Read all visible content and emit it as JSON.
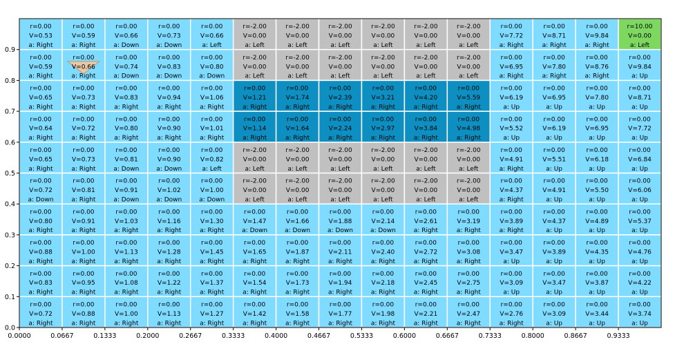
{
  "chart_data": {
    "type": "heatmap",
    "title": "",
    "xlabel": "",
    "ylabel": "",
    "xlim": [
      0,
      1
    ],
    "ylim": [
      0,
      1
    ],
    "grid": true,
    "cols": 15,
    "rows": 10,
    "x_ticks": [
      "0.0000",
      "0.0667",
      "0.1333",
      "0.2000",
      "0.2667",
      "0.3333",
      "0.4000",
      "0.4667",
      "0.5333",
      "0.6000",
      "0.6667",
      "0.7333",
      "0.8000",
      "0.8667",
      "0.9333"
    ],
    "y_ticks": [
      "0.0",
      "0.1",
      "0.2",
      "0.3",
      "0.4",
      "0.5",
      "0.6",
      "0.7",
      "0.8",
      "0.9"
    ],
    "colors": {
      "normal": "#7fdbff",
      "penalty": "#c0c0c0",
      "path": "#0e8fc2",
      "goal": "#7ed860",
      "agent": "#f0c8a0",
      "grid_line": "#ffffff"
    },
    "agent": {
      "row": 1,
      "col": 1,
      "shape": "triangle-down"
    },
    "cells": [
      [
        {
          "r": "0.00",
          "v": "0.53",
          "a": "Right",
          "kind": "normal"
        },
        {
          "r": "0.00",
          "v": "0.59",
          "a": "Right",
          "kind": "normal"
        },
        {
          "r": "0.00",
          "v": "0.66",
          "a": "Down",
          "kind": "normal"
        },
        {
          "r": "0.00",
          "v": "0.73",
          "a": "Down",
          "kind": "normal"
        },
        {
          "r": "0.00",
          "v": "0.66",
          "a": "Left",
          "kind": "normal"
        },
        {
          "r": "-2.00",
          "v": "0.00",
          "a": "Left",
          "kind": "penalty"
        },
        {
          "r": "-2.00",
          "v": "0.00",
          "a": "Left",
          "kind": "penalty"
        },
        {
          "r": "-2.00",
          "v": "0.00",
          "a": "Left",
          "kind": "penalty"
        },
        {
          "r": "-2.00",
          "v": "0.00",
          "a": "Left",
          "kind": "penalty"
        },
        {
          "r": "-2.00",
          "v": "0.00",
          "a": "Left",
          "kind": "penalty"
        },
        {
          "r": "-2.00",
          "v": "0.00",
          "a": "Left",
          "kind": "penalty"
        },
        {
          "r": "0.00",
          "v": "7.72",
          "a": "Right",
          "kind": "normal"
        },
        {
          "r": "0.00",
          "v": "8.71",
          "a": "Right",
          "kind": "normal"
        },
        {
          "r": "0.00",
          "v": "9.84",
          "a": "Right",
          "kind": "normal"
        },
        {
          "r": "10.00",
          "v": "0.00",
          "a": "Left",
          "kind": "goal"
        }
      ],
      [
        {
          "r": "0.00",
          "v": "0.59",
          "a": "Right",
          "kind": "normal"
        },
        {
          "r": "0.00",
          "v": "0.66",
          "a": "Right",
          "kind": "normal"
        },
        {
          "r": "0.00",
          "v": "0.74",
          "a": "Down",
          "kind": "normal"
        },
        {
          "r": "0.00",
          "v": "0.83",
          "a": "Down",
          "kind": "normal"
        },
        {
          "r": "0.00",
          "v": "0.80",
          "a": "Down",
          "kind": "normal"
        },
        {
          "r": "-2.00",
          "v": "0.00",
          "a": "Left",
          "kind": "penalty"
        },
        {
          "r": "-2.00",
          "v": "0.00",
          "a": "Left",
          "kind": "penalty"
        },
        {
          "r": "-2.00",
          "v": "0.00",
          "a": "Left",
          "kind": "penalty"
        },
        {
          "r": "-2.00",
          "v": "0.00",
          "a": "Left",
          "kind": "penalty"
        },
        {
          "r": "-2.00",
          "v": "0.00",
          "a": "Left",
          "kind": "penalty"
        },
        {
          "r": "-2.00",
          "v": "0.00",
          "a": "Left",
          "kind": "penalty"
        },
        {
          "r": "0.00",
          "v": "6.95",
          "a": "Right",
          "kind": "normal"
        },
        {
          "r": "0.00",
          "v": "7.80",
          "a": "Right",
          "kind": "normal"
        },
        {
          "r": "0.00",
          "v": "8.76",
          "a": "Right",
          "kind": "normal"
        },
        {
          "r": "0.00",
          "v": "9.84",
          "a": "Up",
          "kind": "normal"
        }
      ],
      [
        {
          "r": "0.00",
          "v": "0.65",
          "a": "Right",
          "kind": "normal"
        },
        {
          "r": "0.00",
          "v": "0.73",
          "a": "Right",
          "kind": "normal"
        },
        {
          "r": "0.00",
          "v": "0.83",
          "a": "Right",
          "kind": "normal"
        },
        {
          "r": "0.00",
          "v": "0.94",
          "a": "Right",
          "kind": "normal"
        },
        {
          "r": "0.00",
          "v": "1.06",
          "a": "Right",
          "kind": "normal"
        },
        {
          "r": "0.00",
          "v": "1.21",
          "a": "Right",
          "kind": "path"
        },
        {
          "r": "0.00",
          "v": "1.74",
          "a": "Right",
          "kind": "path"
        },
        {
          "r": "0.00",
          "v": "2.39",
          "a": "Right",
          "kind": "path"
        },
        {
          "r": "0.00",
          "v": "3.21",
          "a": "Right",
          "kind": "path"
        },
        {
          "r": "0.00",
          "v": "4.20",
          "a": "Right",
          "kind": "path"
        },
        {
          "r": "0.00",
          "v": "5.59",
          "a": "Right",
          "kind": "path"
        },
        {
          "r": "0.00",
          "v": "6.19",
          "a": "Up",
          "kind": "normal"
        },
        {
          "r": "0.00",
          "v": "6.95",
          "a": "Up",
          "kind": "normal"
        },
        {
          "r": "0.00",
          "v": "7.80",
          "a": "Up",
          "kind": "normal"
        },
        {
          "r": "0.00",
          "v": "8.71",
          "a": "Up",
          "kind": "normal"
        }
      ],
      [
        {
          "r": "0.00",
          "v": "0.64",
          "a": "Right",
          "kind": "normal"
        },
        {
          "r": "0.00",
          "v": "0.72",
          "a": "Right",
          "kind": "normal"
        },
        {
          "r": "0.00",
          "v": "0.80",
          "a": "Right",
          "kind": "normal"
        },
        {
          "r": "0.00",
          "v": "0.90",
          "a": "Right",
          "kind": "normal"
        },
        {
          "r": "0.00",
          "v": "1.01",
          "a": "Right",
          "kind": "normal"
        },
        {
          "r": "0.00",
          "v": "1.14",
          "a": "Right",
          "kind": "path"
        },
        {
          "r": "0.00",
          "v": "1.64",
          "a": "Right",
          "kind": "path"
        },
        {
          "r": "0.00",
          "v": "2.24",
          "a": "Right",
          "kind": "path"
        },
        {
          "r": "0.00",
          "v": "2.97",
          "a": "Right",
          "kind": "path"
        },
        {
          "r": "0.00",
          "v": "3.84",
          "a": "Right",
          "kind": "path"
        },
        {
          "r": "0.00",
          "v": "4.98",
          "a": "Right",
          "kind": "path"
        },
        {
          "r": "0.00",
          "v": "5.52",
          "a": "Up",
          "kind": "normal"
        },
        {
          "r": "0.00",
          "v": "6.19",
          "a": "Up",
          "kind": "normal"
        },
        {
          "r": "0.00",
          "v": "6.95",
          "a": "Up",
          "kind": "normal"
        },
        {
          "r": "0.00",
          "v": "7.72",
          "a": "Up",
          "kind": "normal"
        }
      ],
      [
        {
          "r": "0.00",
          "v": "0.65",
          "a": "Right",
          "kind": "normal"
        },
        {
          "r": "0.00",
          "v": "0.73",
          "a": "Right",
          "kind": "normal"
        },
        {
          "r": "0.00",
          "v": "0.81",
          "a": "Down",
          "kind": "normal"
        },
        {
          "r": "0.00",
          "v": "0.90",
          "a": "Down",
          "kind": "normal"
        },
        {
          "r": "0.00",
          "v": "0.82",
          "a": "Left",
          "kind": "normal"
        },
        {
          "r": "-2.00",
          "v": "0.00",
          "a": "Left",
          "kind": "penalty"
        },
        {
          "r": "-2.00",
          "v": "0.00",
          "a": "Left",
          "kind": "penalty"
        },
        {
          "r": "-2.00",
          "v": "0.00",
          "a": "Left",
          "kind": "penalty"
        },
        {
          "r": "-2.00",
          "v": "0.00",
          "a": "Left",
          "kind": "penalty"
        },
        {
          "r": "-2.00",
          "v": "0.00",
          "a": "Left",
          "kind": "penalty"
        },
        {
          "r": "-2.00",
          "v": "0.00",
          "a": "Left",
          "kind": "penalty"
        },
        {
          "r": "0.00",
          "v": "4.91",
          "a": "Right",
          "kind": "normal"
        },
        {
          "r": "0.00",
          "v": "5.51",
          "a": "Up",
          "kind": "normal"
        },
        {
          "r": "0.00",
          "v": "6.18",
          "a": "Up",
          "kind": "normal"
        },
        {
          "r": "0.00",
          "v": "6.84",
          "a": "Up",
          "kind": "normal"
        }
      ],
      [
        {
          "r": "0.00",
          "v": "0.72",
          "a": "Down",
          "kind": "normal"
        },
        {
          "r": "0.00",
          "v": "0.81",
          "a": "Right",
          "kind": "normal"
        },
        {
          "r": "0.00",
          "v": "0.91",
          "a": "Down",
          "kind": "normal"
        },
        {
          "r": "0.00",
          "v": "1.02",
          "a": "Down",
          "kind": "normal"
        },
        {
          "r": "0.00",
          "v": "1.00",
          "a": "Down",
          "kind": "normal"
        },
        {
          "r": "-2.00",
          "v": "0.00",
          "a": "Left",
          "kind": "penalty"
        },
        {
          "r": "-2.00",
          "v": "0.00",
          "a": "Left",
          "kind": "penalty"
        },
        {
          "r": "-2.00",
          "v": "0.00",
          "a": "Left",
          "kind": "penalty"
        },
        {
          "r": "-2.00",
          "v": "0.00",
          "a": "Left",
          "kind": "penalty"
        },
        {
          "r": "-2.00",
          "v": "0.00",
          "a": "Left",
          "kind": "penalty"
        },
        {
          "r": "-2.00",
          "v": "0.00",
          "a": "Left",
          "kind": "penalty"
        },
        {
          "r": "0.00",
          "v": "4.37",
          "a": "Right",
          "kind": "normal"
        },
        {
          "r": "0.00",
          "v": "4.91",
          "a": "Up",
          "kind": "normal"
        },
        {
          "r": "0.00",
          "v": "5.50",
          "a": "Up",
          "kind": "normal"
        },
        {
          "r": "0.00",
          "v": "6.06",
          "a": "Up",
          "kind": "normal"
        }
      ],
      [
        {
          "r": "0.00",
          "v": "0.80",
          "a": "Right",
          "kind": "normal"
        },
        {
          "r": "0.00",
          "v": "0.91",
          "a": "Right",
          "kind": "normal"
        },
        {
          "r": "0.00",
          "v": "1.03",
          "a": "Right",
          "kind": "normal"
        },
        {
          "r": "0.00",
          "v": "1.16",
          "a": "Right",
          "kind": "normal"
        },
        {
          "r": "0.00",
          "v": "1.30",
          "a": "Right",
          "kind": "normal"
        },
        {
          "r": "0.00",
          "v": "1.47",
          "a": "Down",
          "kind": "normal"
        },
        {
          "r": "0.00",
          "v": "1.66",
          "a": "Down",
          "kind": "normal"
        },
        {
          "r": "0.00",
          "v": "1.88",
          "a": "Down",
          "kind": "normal"
        },
        {
          "r": "0.00",
          "v": "2.14",
          "a": "Down",
          "kind": "normal"
        },
        {
          "r": "0.00",
          "v": "2.61",
          "a": "Right",
          "kind": "normal"
        },
        {
          "r": "0.00",
          "v": "3.19",
          "a": "Right",
          "kind": "normal"
        },
        {
          "r": "0.00",
          "v": "3.89",
          "a": "Right",
          "kind": "normal"
        },
        {
          "r": "0.00",
          "v": "4.37",
          "a": "Up",
          "kind": "normal"
        },
        {
          "r": "0.00",
          "v": "4.89",
          "a": "Up",
          "kind": "normal"
        },
        {
          "r": "0.00",
          "v": "5.37",
          "a": "Up",
          "kind": "normal"
        }
      ],
      [
        {
          "r": "0.00",
          "v": "0.88",
          "a": "Right",
          "kind": "normal"
        },
        {
          "r": "0.00",
          "v": "1.00",
          "a": "Right",
          "kind": "normal"
        },
        {
          "r": "0.00",
          "v": "1.13",
          "a": "Right",
          "kind": "normal"
        },
        {
          "r": "0.00",
          "v": "1.28",
          "a": "Right",
          "kind": "normal"
        },
        {
          "r": "0.00",
          "v": "1.45",
          "a": "Right",
          "kind": "normal"
        },
        {
          "r": "0.00",
          "v": "1.65",
          "a": "Right",
          "kind": "normal"
        },
        {
          "r": "0.00",
          "v": "1.87",
          "a": "Right",
          "kind": "normal"
        },
        {
          "r": "0.00",
          "v": "2.11",
          "a": "Right",
          "kind": "normal"
        },
        {
          "r": "0.00",
          "v": "2.40",
          "a": "Right",
          "kind": "normal"
        },
        {
          "r": "0.00",
          "v": "2.72",
          "a": "Right",
          "kind": "normal"
        },
        {
          "r": "0.00",
          "v": "3.08",
          "a": "Right",
          "kind": "normal"
        },
        {
          "r": "0.00",
          "v": "3.47",
          "a": "Up",
          "kind": "normal"
        },
        {
          "r": "0.00",
          "v": "3.89",
          "a": "Up",
          "kind": "normal"
        },
        {
          "r": "0.00",
          "v": "4.35",
          "a": "Up",
          "kind": "normal"
        },
        {
          "r": "0.00",
          "v": "4.76",
          "a": "Up",
          "kind": "normal"
        }
      ],
      [
        {
          "r": "0.00",
          "v": "0.83",
          "a": "Right",
          "kind": "normal"
        },
        {
          "r": "0.00",
          "v": "0.95",
          "a": "Right",
          "kind": "normal"
        },
        {
          "r": "0.00",
          "v": "1.08",
          "a": "Right",
          "kind": "normal"
        },
        {
          "r": "0.00",
          "v": "1.22",
          "a": "Right",
          "kind": "normal"
        },
        {
          "r": "0.00",
          "v": "1.37",
          "a": "Right",
          "kind": "normal"
        },
        {
          "r": "0.00",
          "v": "1.54",
          "a": "Right",
          "kind": "normal"
        },
        {
          "r": "0.00",
          "v": "1.73",
          "a": "Right",
          "kind": "normal"
        },
        {
          "r": "0.00",
          "v": "1.94",
          "a": "Right",
          "kind": "normal"
        },
        {
          "r": "0.00",
          "v": "2.18",
          "a": "Right",
          "kind": "normal"
        },
        {
          "r": "0.00",
          "v": "2.45",
          "a": "Right",
          "kind": "normal"
        },
        {
          "r": "0.00",
          "v": "2.75",
          "a": "Right",
          "kind": "normal"
        },
        {
          "r": "0.00",
          "v": "3.09",
          "a": "Up",
          "kind": "normal"
        },
        {
          "r": "0.00",
          "v": "3.47",
          "a": "Up",
          "kind": "normal"
        },
        {
          "r": "0.00",
          "v": "3.87",
          "a": "Up",
          "kind": "normal"
        },
        {
          "r": "0.00",
          "v": "4.22",
          "a": "Up",
          "kind": "normal"
        }
      ],
      [
        {
          "r": "0.00",
          "v": "0.72",
          "a": "Right",
          "kind": "normal"
        },
        {
          "r": "0.00",
          "v": "0.88",
          "a": "Right",
          "kind": "normal"
        },
        {
          "r": "0.00",
          "v": "1.00",
          "a": "Right",
          "kind": "normal"
        },
        {
          "r": "0.00",
          "v": "1.13",
          "a": "Right",
          "kind": "normal"
        },
        {
          "r": "0.00",
          "v": "1.27",
          "a": "Right",
          "kind": "normal"
        },
        {
          "r": "0.00",
          "v": "1.42",
          "a": "Right",
          "kind": "normal"
        },
        {
          "r": "0.00",
          "v": "1.58",
          "a": "Right",
          "kind": "normal"
        },
        {
          "r": "0.00",
          "v": "1.77",
          "a": "Right",
          "kind": "normal"
        },
        {
          "r": "0.00",
          "v": "1.98",
          "a": "Right",
          "kind": "normal"
        },
        {
          "r": "0.00",
          "v": "2.21",
          "a": "Right",
          "kind": "normal"
        },
        {
          "r": "0.00",
          "v": "2.47",
          "a": "Right",
          "kind": "normal"
        },
        {
          "r": "0.00",
          "v": "2.76",
          "a": "Right",
          "kind": "normal"
        },
        {
          "r": "0.00",
          "v": "3.09",
          "a": "Up",
          "kind": "normal"
        },
        {
          "r": "0.00",
          "v": "3.44",
          "a": "Up",
          "kind": "normal"
        },
        {
          "r": "0.00",
          "v": "3.74",
          "a": "Up",
          "kind": "normal"
        }
      ]
    ]
  }
}
